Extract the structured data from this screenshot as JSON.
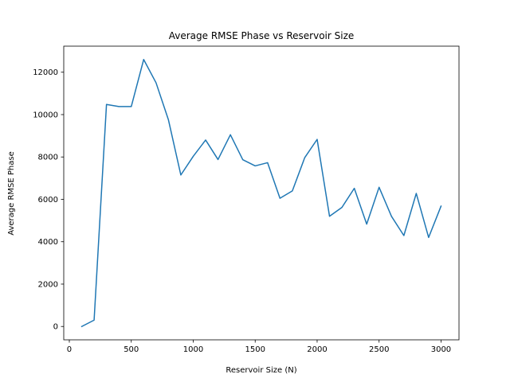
{
  "chart_data": {
    "type": "line",
    "title": "Average RMSE Phase vs Reservoir Size",
    "xlabel": "Reservoir Size (N)",
    "ylabel": "Average RMSE Phase",
    "xlim": [
      -45,
      3145
    ],
    "ylim": [
      -630,
      13230
    ],
    "x_ticks": [
      0,
      500,
      1000,
      1500,
      2000,
      2500,
      3000
    ],
    "y_ticks": [
      0,
      2000,
      4000,
      6000,
      8000,
      10000,
      12000
    ],
    "grid": false,
    "series": [
      {
        "color": "#1f77b4",
        "x": [
          100,
          200,
          300,
          400,
          500,
          600,
          700,
          800,
          900,
          1000,
          1100,
          1200,
          1300,
          1400,
          1500,
          1600,
          1700,
          1800,
          1900,
          2000,
          2100,
          2200,
          2300,
          2400,
          2500,
          2600,
          2700,
          2800,
          2900,
          3000
        ],
        "y": [
          0,
          300,
          10480,
          10380,
          10380,
          12600,
          11500,
          9750,
          7150,
          8030,
          8800,
          7880,
          9050,
          7870,
          7580,
          7730,
          6050,
          6400,
          7970,
          8830,
          5200,
          5620,
          6520,
          4830,
          6570,
          5200,
          4290,
          6280,
          4200,
          5680
        ]
      }
    ]
  }
}
